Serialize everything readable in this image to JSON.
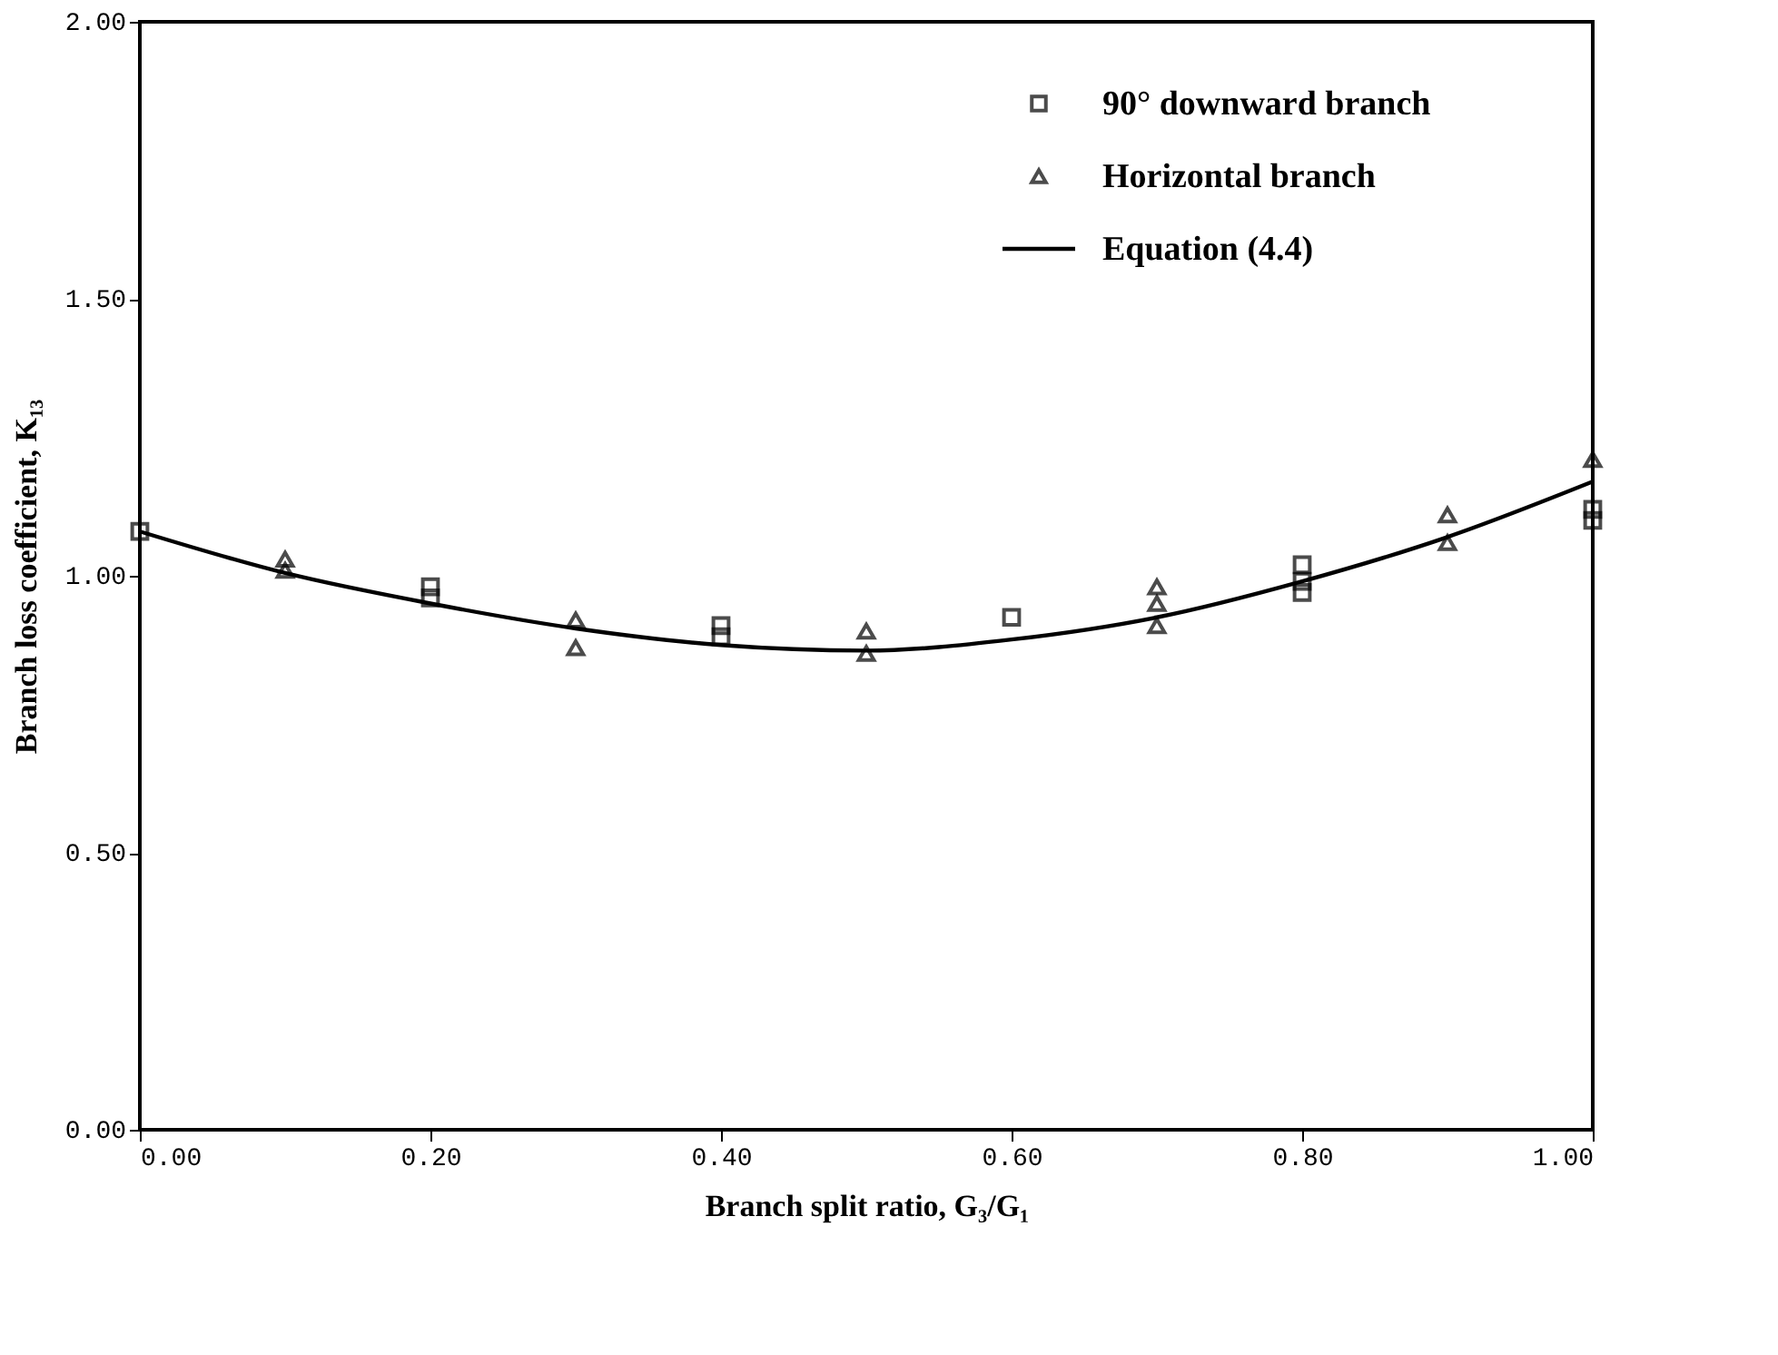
{
  "chart_data": {
    "type": "scatter",
    "xlabel": "Branch split ratio, G₃/G₁",
    "ylabel": "Branch loss coefficient, K₁₃",
    "xlim": [
      0,
      1
    ],
    "ylim": [
      0,
      2
    ],
    "xticks": [
      {
        "value": 0,
        "label": "0.00"
      },
      {
        "value": 0.2,
        "label": "0.20"
      },
      {
        "value": 0.4,
        "label": "0.40"
      },
      {
        "value": 0.6,
        "label": "0.60"
      },
      {
        "value": 0.8,
        "label": "0.80"
      },
      {
        "value": 1,
        "label": "1.00"
      }
    ],
    "yticks": [
      {
        "value": 0,
        "label": "0.00"
      },
      {
        "value": 0.5,
        "label": "0.50"
      },
      {
        "value": 1,
        "label": "1.00"
      },
      {
        "value": 1.5,
        "label": "1.50"
      },
      {
        "value": 2,
        "label": "2.00"
      }
    ],
    "grid": false,
    "legend": "top right",
    "series": [
      {
        "name": "90° downward branch",
        "marker": "square",
        "color": "#000000",
        "x": [
          0,
          0.2,
          0.2,
          0.4,
          0.4,
          0.6,
          0.8,
          0.8,
          0.8,
          1,
          1
        ],
        "values": [
          1.08,
          0.98,
          0.96,
          0.91,
          0.89,
          0.925,
          1.02,
          0.99,
          0.97,
          1.12,
          1.1
        ]
      },
      {
        "name": "Horizontal branch",
        "marker": "triangle",
        "color": "#000000",
        "x": [
          0.1,
          0.1,
          0.3,
          0.3,
          0.5,
          0.5,
          0.7,
          0.7,
          0.7,
          0.9,
          0.9,
          1
        ],
        "values": [
          1.03,
          1.01,
          0.92,
          0.87,
          0.9,
          0.86,
          0.98,
          0.95,
          0.91,
          1.11,
          1.06,
          1.21
        ]
      },
      {
        "name": "Equation (4.4)",
        "type": "line",
        "line_style": "solid",
        "marker": "none",
        "color": "#000000",
        "x": [
          0,
          0.1,
          0.2,
          0.3,
          0.4,
          0.5,
          0.6,
          0.7,
          0.8,
          0.9,
          1
        ],
        "values": [
          1.08,
          1.005,
          0.95,
          0.905,
          0.875,
          0.865,
          0.885,
          0.925,
          0.99,
          1.07,
          1.17
        ]
      }
    ]
  }
}
